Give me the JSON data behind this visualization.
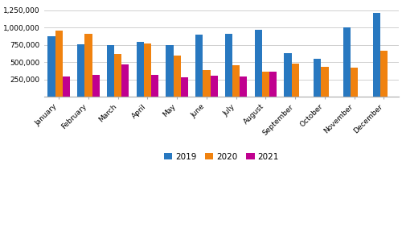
{
  "months": [
    "January",
    "February",
    "March",
    "April",
    "May",
    "June",
    "July",
    "August",
    "September",
    "October",
    "November",
    "December"
  ],
  "series": {
    "2019": [
      870000,
      755000,
      745000,
      790000,
      750000,
      900000,
      905000,
      970000,
      630000,
      545000,
      1000000,
      1210000
    ],
    "2020": [
      960000,
      910000,
      620000,
      765000,
      590000,
      390000,
      455000,
      360000,
      475000,
      430000,
      415000,
      660000
    ],
    "2021": [
      295000,
      320000,
      470000,
      315000,
      285000,
      305000,
      295000,
      360000,
      null,
      null,
      null,
      null
    ]
  },
  "colors": {
    "2019": "#2878c0",
    "2020": "#f0820f",
    "2021": "#c0008f"
  },
  "ylim": [
    0,
    1350000
  ],
  "yticks": [
    250000,
    500000,
    750000,
    1000000,
    1250000
  ],
  "ytick_labels": [
    "250,000",
    "500,000",
    "750,000",
    "1,000,000",
    "1,250,000"
  ],
  "bar_width": 0.25,
  "background_color": "#ffffff",
  "grid_color": "#d0d0d0"
}
